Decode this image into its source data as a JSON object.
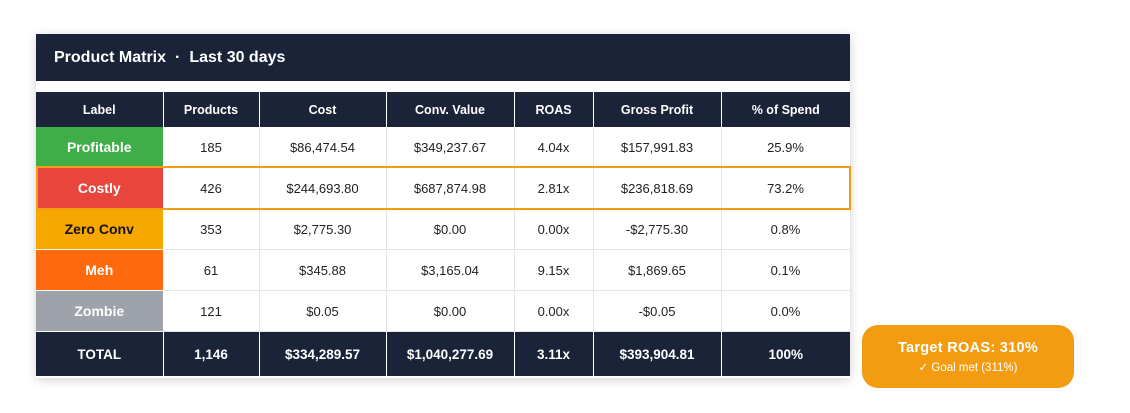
{
  "header": {
    "title": "Product Matrix",
    "separator": "·",
    "range": "Last 30 days"
  },
  "table": {
    "columns": [
      "Label",
      "Products",
      "Cost",
      "Conv. Value",
      "ROAS",
      "Gross Profit",
      "% of Spend"
    ],
    "rows": [
      {
        "label": "Profitable",
        "color": "#3fae49",
        "textColor": "#ffffff",
        "products": "185",
        "cost": "$86,474.54",
        "conv_value": "$349,237.67",
        "roas": "4.04x",
        "gross_profit": "$157,991.83",
        "pct_spend": "25.9%"
      },
      {
        "label": "Costly",
        "color": "#e8453c",
        "textColor": "#ffffff",
        "products": "426",
        "cost": "$244,693.80",
        "conv_value": "$687,874.98",
        "roas": "2.81x",
        "gross_profit": "$236,818.69",
        "pct_spend": "73.2%"
      },
      {
        "label": "Zero Conv",
        "color": "#f7a800",
        "textColor": "#111111",
        "products": "353",
        "cost": "$2,775.30",
        "conv_value": "$0.00",
        "roas": "0.00x",
        "gross_profit": "-$2,775.30",
        "pct_spend": "0.8%"
      },
      {
        "label": "Meh",
        "color": "#ff6a0e",
        "textColor": "#ffffff",
        "products": "61",
        "cost": "$345.88",
        "conv_value": "$3,165.04",
        "roas": "9.15x",
        "gross_profit": "$1,869.65",
        "pct_spend": "0.1%"
      },
      {
        "label": "Zombie",
        "color": "#9ea3ab",
        "textColor": "#ffffff",
        "products": "121",
        "cost": "$0.05",
        "conv_value": "$0.00",
        "roas": "0.00x",
        "gross_profit": "-$0.05",
        "pct_spend": "0.0%"
      }
    ],
    "total": {
      "label": "TOTAL",
      "products": "1,146",
      "cost": "$334,289.57",
      "conv_value": "$1,040,277.69",
      "roas": "3.11x",
      "gross_profit": "$393,904.81",
      "pct_spend": "100%"
    },
    "highlight_row": "Costly"
  },
  "callout": {
    "title": "Target ROAS: 310%",
    "status": "✓ Goal met (311%)"
  },
  "colors": {
    "header_bg": "#1b2338",
    "accent": "#f39c12"
  }
}
